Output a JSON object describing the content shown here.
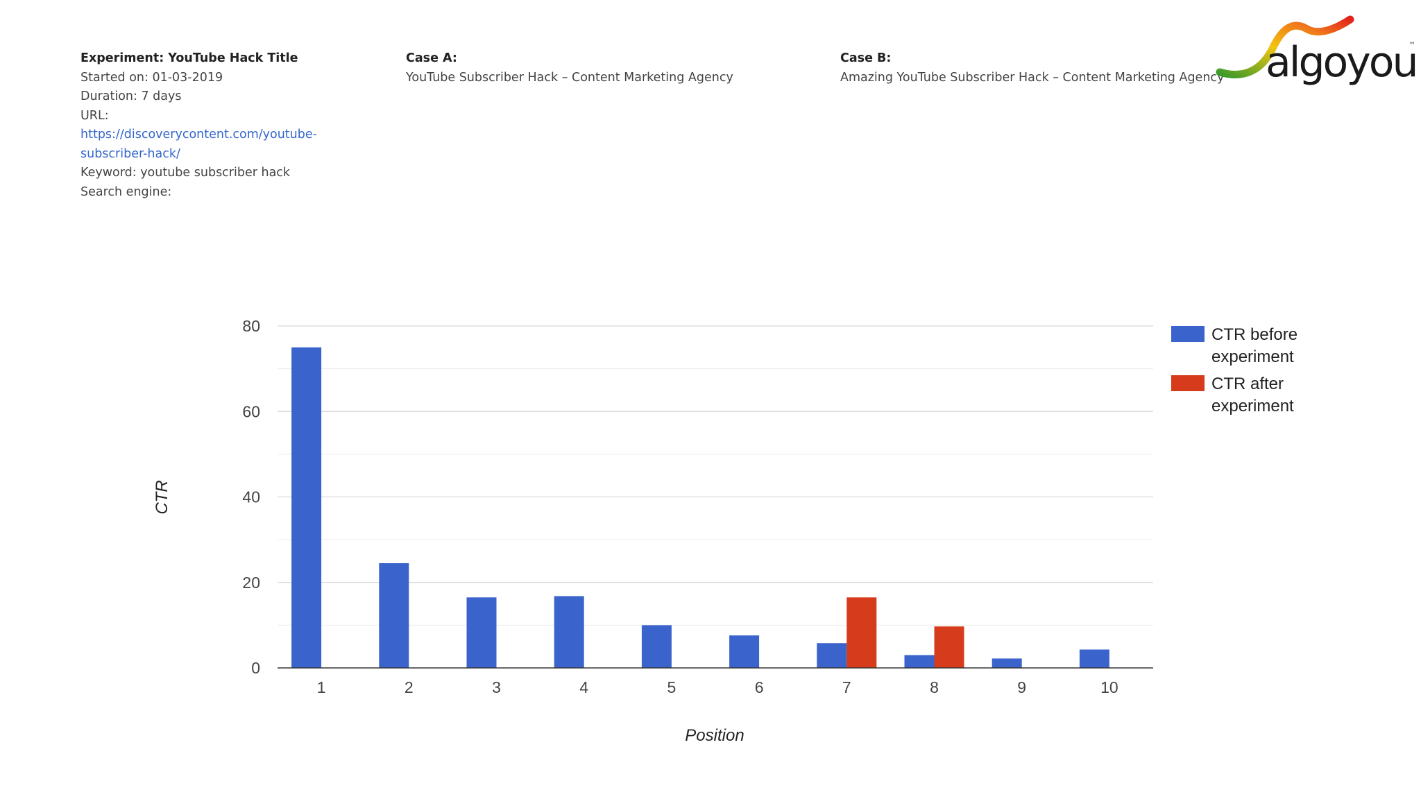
{
  "experiment": {
    "title": "Experiment: YouTube Hack Title",
    "started": "Started on: 01-03-2019",
    "duration": "Duration: 7 days",
    "url_label": "URL: ",
    "url_line1": "https://discoverycontent.com/youtube-",
    "url_line2": "subscriber-hack/",
    "keyword": "Keyword: youtube subscriber hack",
    "search_engine": "Search engine:"
  },
  "case_a": {
    "label": "Case A:",
    "title": "YouTube Subscriber Hack – Content Marketing Agency"
  },
  "case_b": {
    "label": "Case B:",
    "title": "Amazing YouTube Subscriber Hack – Content Marketing Agency"
  },
  "logo": {
    "text": "algoyou",
    "tm": "™"
  },
  "colors": {
    "before": "#3a64cc",
    "after": "#d63b1c"
  },
  "chart_data": {
    "type": "bar",
    "xlabel": "Position",
    "ylabel": "CTR",
    "ylim": [
      0,
      80
    ],
    "yticks": [
      0,
      20,
      40,
      60,
      80
    ],
    "grid": true,
    "legend_position": "right",
    "categories": [
      "1",
      "2",
      "3",
      "4",
      "5",
      "6",
      "7",
      "8",
      "9",
      "10"
    ],
    "series": [
      {
        "name": "CTR before experiment",
        "values": [
          75,
          24.5,
          16.5,
          16.8,
          10,
          7.6,
          5.8,
          3,
          2.2,
          4.3
        ]
      },
      {
        "name": "CTR after experiment",
        "values": [
          0,
          0,
          0,
          0,
          0,
          0,
          16.5,
          9.7,
          0,
          0
        ]
      }
    ]
  }
}
